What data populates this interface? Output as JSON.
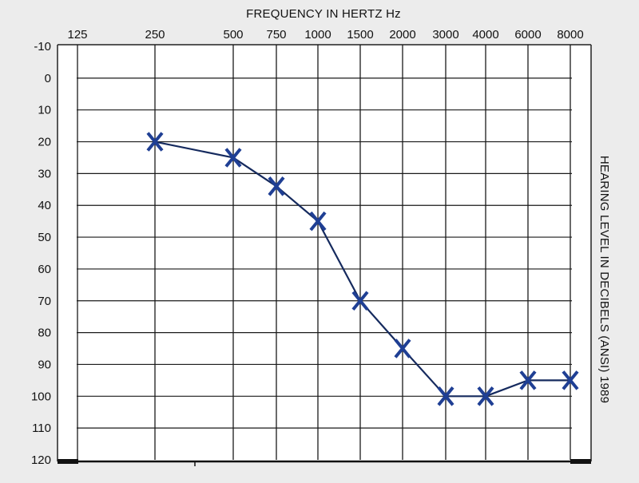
{
  "chart_data": {
    "type": "line",
    "title": "",
    "xlabel": "FREQUENCY IN HERTZ Hz",
    "ylabel": "HEARING LEVEL IN DECIBELS (ANSI) 1989",
    "x_categories": [
      "125",
      "250",
      "500",
      "750",
      "1000",
      "1500",
      "2000",
      "3000",
      "4000",
      "6000",
      "8000"
    ],
    "y_ticks": [
      "-10",
      "0",
      "10",
      "20",
      "30",
      "40",
      "50",
      "60",
      "70",
      "80",
      "90",
      "100",
      "110",
      "120"
    ],
    "ylim": [
      -10,
      120
    ],
    "y_inverted": true,
    "grid": true,
    "legend": "none",
    "series": [
      {
        "marker": "x",
        "color": "#1f3f94",
        "line_color": "#152a5e",
        "points": [
          {
            "x": "250",
            "y": 20
          },
          {
            "x": "500",
            "y": 25
          },
          {
            "x": "750",
            "y": 34
          },
          {
            "x": "1000",
            "y": 45
          },
          {
            "x": "1500",
            "y": 70
          },
          {
            "x": "2000",
            "y": 85
          },
          {
            "x": "3000",
            "y": 100
          },
          {
            "x": "4000",
            "y": 100
          },
          {
            "x": "6000",
            "y": 95
          },
          {
            "x": "8000",
            "y": 95
          }
        ]
      }
    ]
  }
}
